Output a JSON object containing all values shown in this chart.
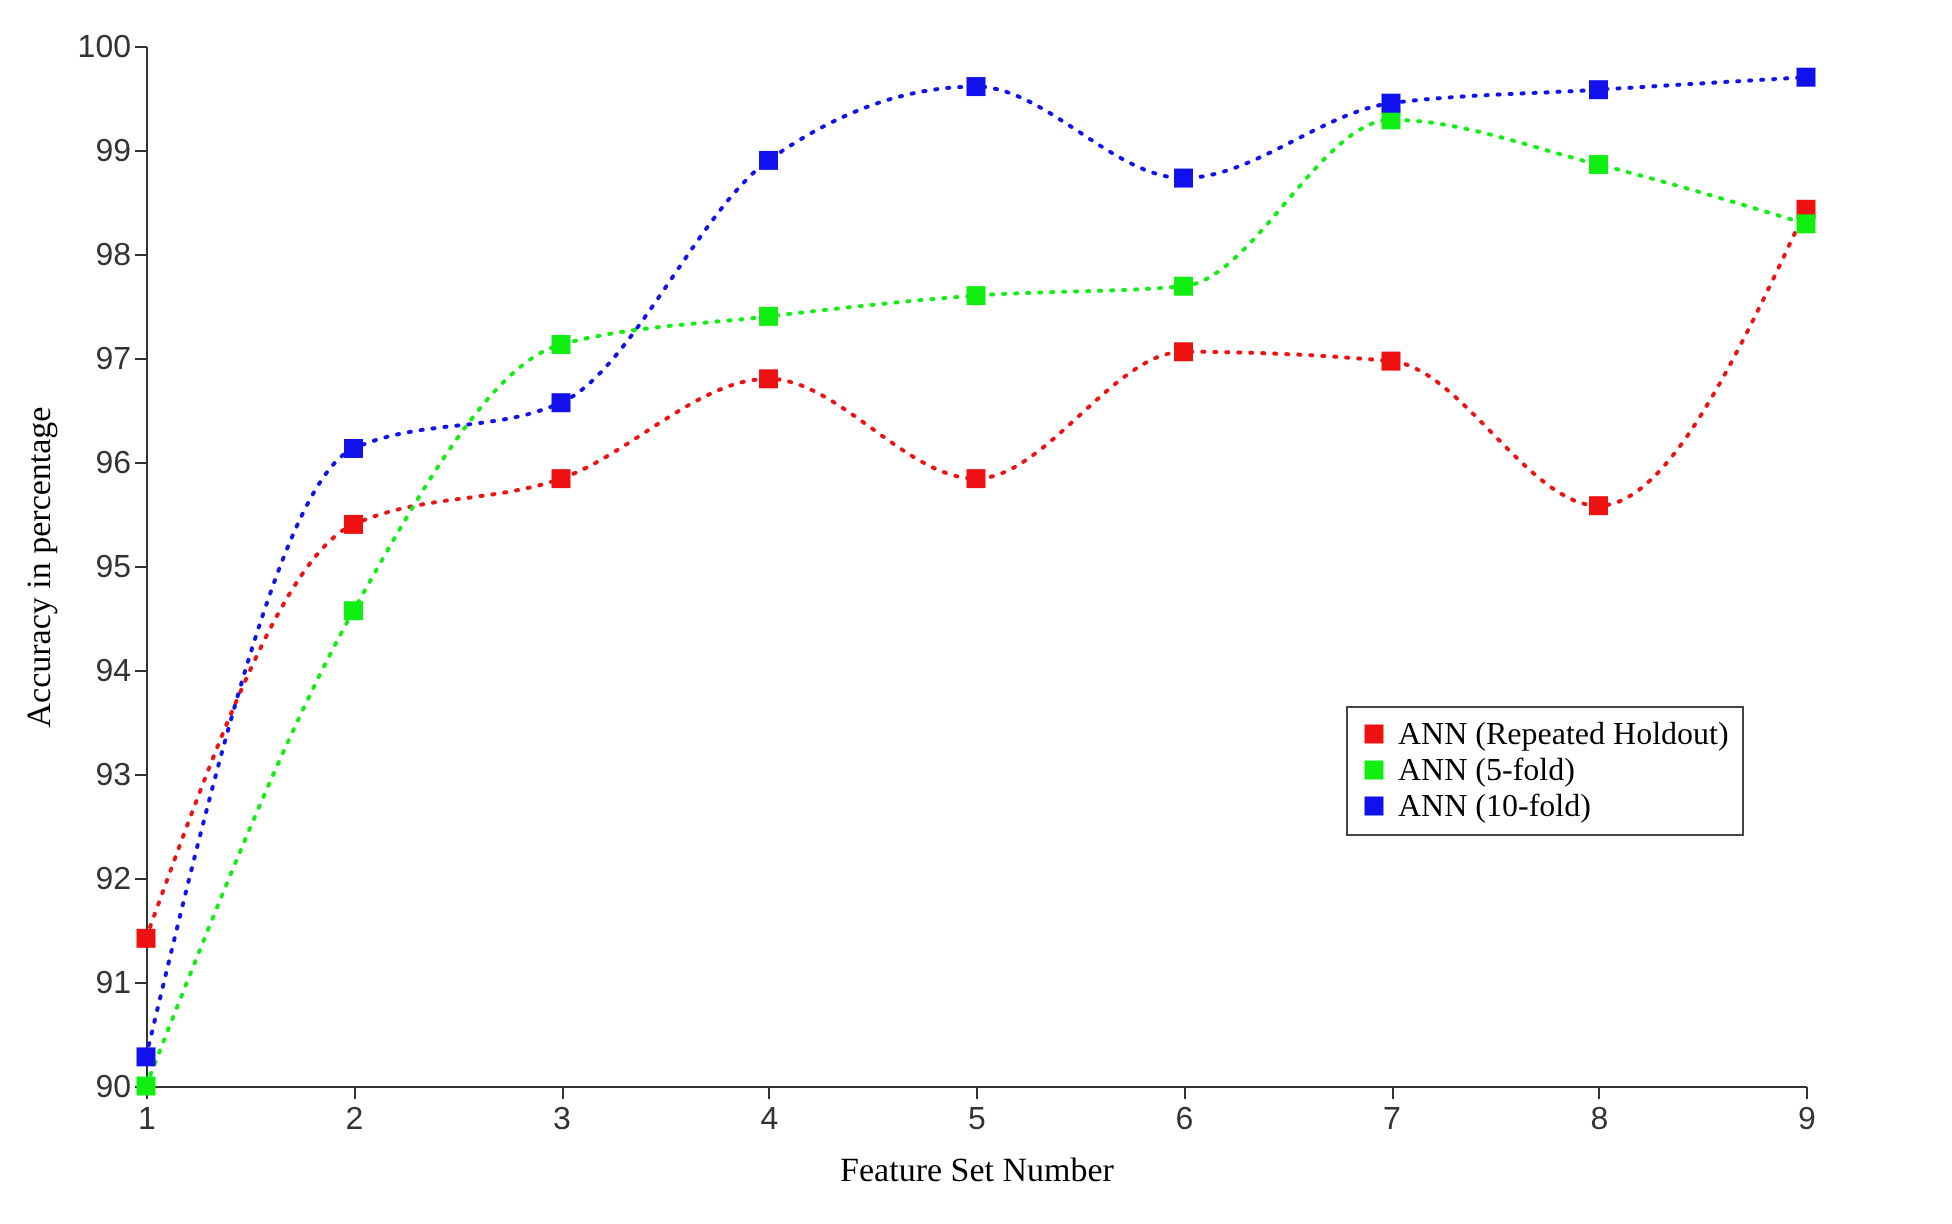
{
  "chart_data": {
    "type": "line",
    "xlabel": "Feature Set Number",
    "ylabel": "Accuracy in percentage",
    "x": [
      1,
      2,
      3,
      4,
      5,
      6,
      7,
      8,
      9
    ],
    "series": [
      {
        "name": "ANN (Repeated Holdout)",
        "color": "#ee1111",
        "values": [
          91.42,
          95.4,
          95.84,
          96.8,
          95.84,
          97.06,
          96.97,
          95.58,
          98.43
        ]
      },
      {
        "name": "ANN (5-fold)",
        "color": "#11ee11",
        "values": [
          90.0,
          94.57,
          97.13,
          97.4,
          97.6,
          97.69,
          99.29,
          98.86,
          98.29
        ]
      },
      {
        "name": "ANN (10-fold)",
        "color": "#1111ee",
        "values": [
          90.28,
          96.13,
          96.57,
          98.9,
          99.61,
          98.73,
          99.45,
          99.58,
          99.7
        ]
      }
    ],
    "xlim": [
      1,
      9
    ],
    "xticks": [
      1,
      2,
      3,
      4,
      5,
      6,
      7,
      8,
      9
    ],
    "ylim": [
      90,
      100
    ],
    "yticks": [
      90,
      91,
      92,
      93,
      94,
      95,
      96,
      97,
      98,
      99,
      100
    ],
    "marker": "square",
    "line_style": "dotted",
    "legend": "right",
    "grid": false
  }
}
